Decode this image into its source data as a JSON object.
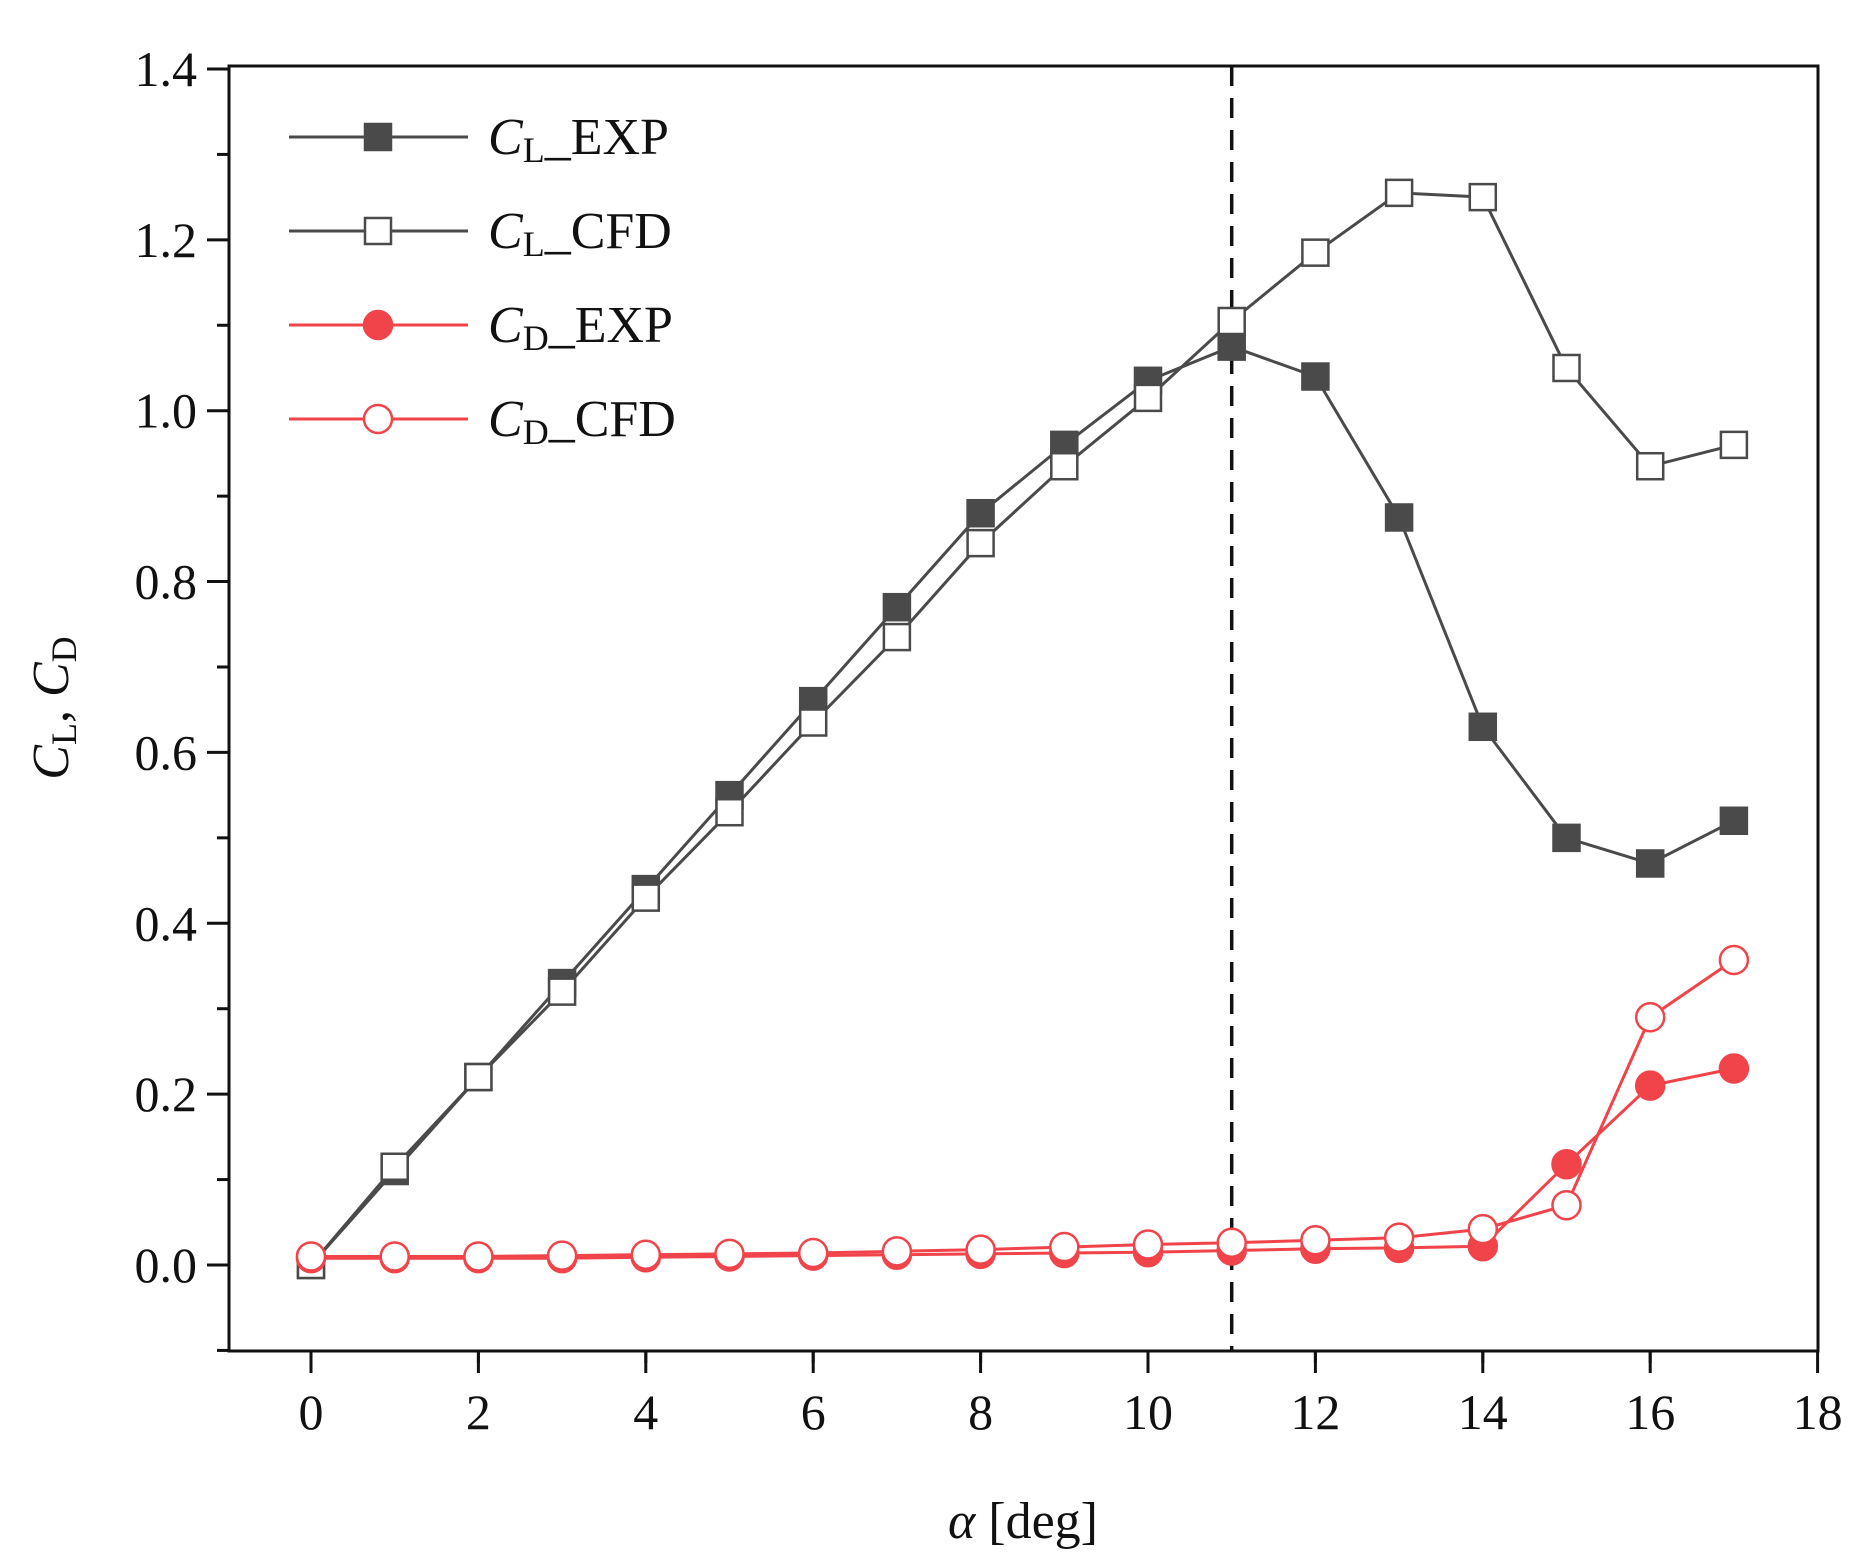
{
  "chart_data": {
    "type": "line",
    "xlabel": {
      "symbol": "α",
      "text": " [deg]"
    },
    "ylabel": {
      "parts": [
        {
          "t": "C",
          "style": "italic",
          "sub": false
        },
        {
          "t": "L",
          "style": "normal",
          "sub": true
        },
        {
          "t": ", ",
          "style": "normal",
          "sub": false
        },
        {
          "t": "C",
          "style": "italic",
          "sub": false
        },
        {
          "t": "D",
          "style": "normal",
          "sub": true
        }
      ]
    },
    "xlim": [
      -1,
      18
    ],
    "ylim": [
      -0.1,
      1.4
    ],
    "x_ticks": [
      0,
      2,
      4,
      6,
      8,
      10,
      12,
      14,
      16,
      18
    ],
    "x_tick_labels": [
      "0",
      "2",
      "4",
      "6",
      "8",
      "10",
      "12",
      "14",
      "16",
      "18"
    ],
    "y_ticks": [
      0.0,
      0.2,
      0.4,
      0.6,
      0.8,
      1.0,
      1.2,
      1.4
    ],
    "y_tick_labels": [
      "0.0",
      "0.2",
      "0.4",
      "0.6",
      "0.8",
      "1.0",
      "1.2",
      "1.4"
    ],
    "grid": false,
    "legend_position": "top-left",
    "reference_line": {
      "type": "vertical",
      "style": "dashed",
      "x": 11
    },
    "x": [
      0,
      1,
      2,
      3,
      4,
      5,
      6,
      7,
      8,
      9,
      10,
      11,
      12,
      13,
      14,
      15,
      16,
      17
    ],
    "series": [
      {
        "name": "C_L_EXP",
        "legend": {
          "base": "C",
          "sub": "L",
          "suffix": "_EXP"
        },
        "color": "#4a4a4a",
        "marker": "square",
        "filled": true,
        "values": [
          0.0,
          0.11,
          0.22,
          0.33,
          0.44,
          0.55,
          0.66,
          0.77,
          0.88,
          0.96,
          1.035,
          1.075,
          1.04,
          0.875,
          0.63,
          0.5,
          0.47,
          0.52
        ]
      },
      {
        "name": "C_L_CFD",
        "legend": {
          "base": "C",
          "sub": "L",
          "suffix": "_CFD"
        },
        "color": "#4a4a4a",
        "marker": "square",
        "filled": false,
        "values": [
          0.0,
          0.115,
          0.22,
          0.32,
          0.43,
          0.53,
          0.635,
          0.735,
          0.845,
          0.935,
          1.015,
          1.105,
          1.185,
          1.255,
          1.25,
          1.05,
          0.935,
          0.96
        ]
      },
      {
        "name": "C_D_EXP",
        "legend": {
          "base": "C",
          "sub": "D",
          "suffix": "_EXP"
        },
        "color": "#f0444a",
        "marker": "circle",
        "filled": true,
        "values": [
          0.008,
          0.008,
          0.008,
          0.008,
          0.009,
          0.01,
          0.011,
          0.012,
          0.013,
          0.014,
          0.015,
          0.017,
          0.019,
          0.02,
          0.022,
          0.118,
          0.21,
          0.23
        ]
      },
      {
        "name": "C_D_CFD",
        "legend": {
          "base": "C",
          "sub": "D",
          "suffix": "_CFD"
        },
        "color": "#f0444a",
        "marker": "circle",
        "filled": false,
        "values": [
          0.01,
          0.01,
          0.01,
          0.011,
          0.012,
          0.013,
          0.014,
          0.016,
          0.018,
          0.021,
          0.024,
          0.026,
          0.029,
          0.032,
          0.042,
          0.07,
          0.29,
          0.357
        ]
      }
    ]
  }
}
